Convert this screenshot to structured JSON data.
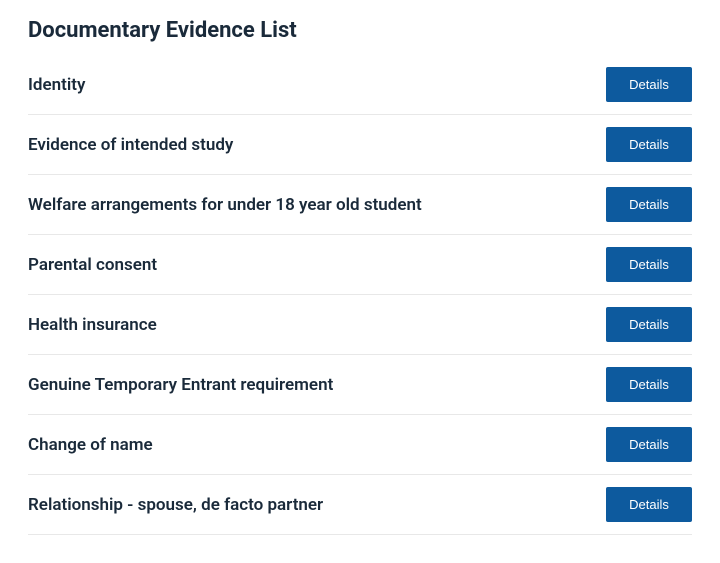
{
  "title": "Documentary Evidence List",
  "button_label": "Details",
  "colors": {
    "heading_text": "#1a2a3a",
    "button_bg": "#0d5a9e",
    "button_text": "#ffffff",
    "divider": "#e8e8e8",
    "background": "#ffffff"
  },
  "items": [
    {
      "label": "Identity"
    },
    {
      "label": "Evidence of intended study"
    },
    {
      "label": "Welfare arrangements for under 18 year old student"
    },
    {
      "label": "Parental consent"
    },
    {
      "label": "Health insurance"
    },
    {
      "label": "Genuine Temporary Entrant requirement"
    },
    {
      "label": "Change of name"
    },
    {
      "label": "Relationship - spouse, de facto partner"
    }
  ]
}
